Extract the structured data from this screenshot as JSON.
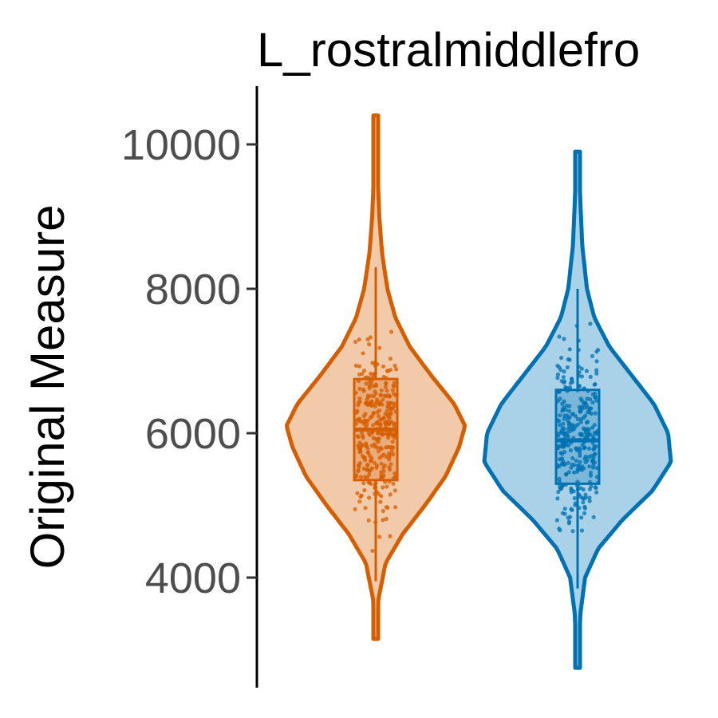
{
  "chart_data": {
    "type": "violin",
    "title": "L_rostralmiddlefro",
    "ylabel": "Original Measure",
    "xlabel": "",
    "ylim": [
      2600,
      10700
    ],
    "yticks": [
      4000,
      6000,
      8000,
      10000
    ],
    "ytick_labels": [
      "4000",
      "6000",
      "8000",
      "10000"
    ],
    "grid": false,
    "legend": "none",
    "groups": [
      {
        "color": "#D55E00",
        "fill": "#F1CAAA",
        "min": 3150,
        "max": 10400,
        "box": {
          "q1": 5350,
          "median": 6050,
          "q3": 6750,
          "whisker_low": 3950,
          "whisker_high": 8300
        },
        "density": [
          [
            3150,
            0.01
          ],
          [
            3700,
            0.03
          ],
          [
            4200,
            0.11
          ],
          [
            4600,
            0.3
          ],
          [
            5000,
            0.55
          ],
          [
            5400,
            0.78
          ],
          [
            5800,
            0.93
          ],
          [
            6100,
            1.0
          ],
          [
            6400,
            0.88
          ],
          [
            6800,
            0.62
          ],
          [
            7200,
            0.38
          ],
          [
            7600,
            0.22
          ],
          [
            8000,
            0.13
          ],
          [
            8500,
            0.07
          ],
          [
            9000,
            0.04
          ],
          [
            9600,
            0.02
          ],
          [
            10400,
            0.01
          ]
        ]
      },
      {
        "color": "#0072B2",
        "fill": "#A9D1E8",
        "min": 2750,
        "max": 9900,
        "box": {
          "q1": 5300,
          "median": 5900,
          "q3": 6600,
          "whisker_low": 3850,
          "whisker_high": 8000
        },
        "density": [
          [
            2750,
            0.01
          ],
          [
            3500,
            0.03
          ],
          [
            4000,
            0.08
          ],
          [
            4400,
            0.22
          ],
          [
            4800,
            0.48
          ],
          [
            5200,
            0.8
          ],
          [
            5600,
            1.0
          ],
          [
            6000,
            0.97
          ],
          [
            6400,
            0.82
          ],
          [
            6800,
            0.58
          ],
          [
            7200,
            0.34
          ],
          [
            7600,
            0.18
          ],
          [
            8000,
            0.1
          ],
          [
            8600,
            0.05
          ],
          [
            9200,
            0.03
          ],
          [
            9900,
            0.01
          ]
        ]
      }
    ]
  }
}
